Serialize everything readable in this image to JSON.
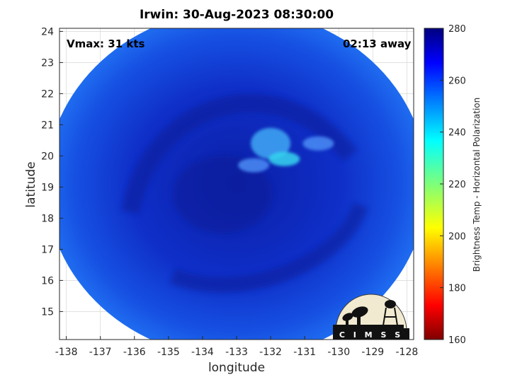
{
  "chart_data": {
    "type": "heatmap",
    "title": "Irwin: 30-Aug-2023 08:30:00",
    "xlabel": "longitude",
    "ylabel": "latitude",
    "xlim": [
      -138.2,
      -127.8
    ],
    "ylim": [
      14.1,
      24.1
    ],
    "xticks": [
      -138,
      -137,
      -136,
      -135,
      -134,
      -133,
      -132,
      -131,
      -130,
      -129,
      -128
    ],
    "yticks": [
      15,
      16,
      17,
      18,
      19,
      20,
      21,
      22,
      23,
      24
    ],
    "grid": true,
    "annotations": {
      "left": "Vmax: 31 kts",
      "right": "02:13 away"
    },
    "colorbar": {
      "label": "Brightness Temp - Horizontal Polarization",
      "range": [
        160,
        280
      ],
      "ticks": [
        160,
        180,
        200,
        220,
        240,
        260,
        280
      ],
      "colormap": "jet"
    },
    "swath": {
      "center_lon": -133.0,
      "center_lat": 19.1,
      "radius_deg": 5.6
    },
    "features": [
      {
        "lon": -132.0,
        "lat": 20.4,
        "value": 248
      },
      {
        "lon": -132.5,
        "lat": 19.7,
        "value": 250
      },
      {
        "lon": -131.6,
        "lat": 19.9,
        "value": 246
      },
      {
        "lon": -130.6,
        "lat": 20.4,
        "value": 250
      }
    ]
  },
  "logo": {
    "text": "CIMSS"
  },
  "colors": {
    "swath_edge": "#1f6cf0",
    "swath_core": "#0f2fc8",
    "deep_core": "#0b1fa6",
    "background": "#ffffff"
  }
}
